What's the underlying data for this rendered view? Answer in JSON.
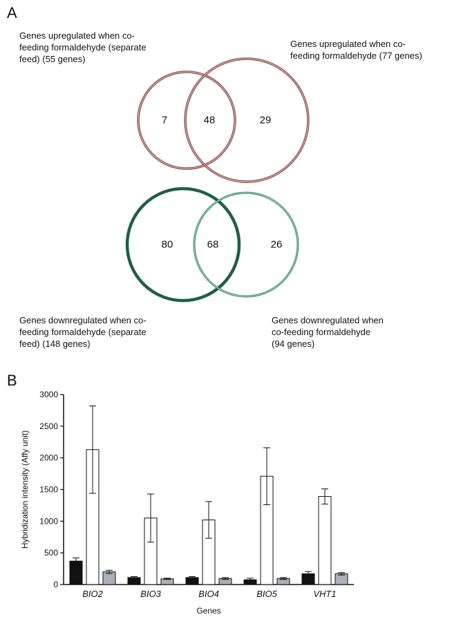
{
  "panel_a": {
    "letter": "A",
    "up": {
      "left_label": [
        "Genes upregulated when co-",
        "feeding formaldehyde (separate",
        "feed) (55 genes)"
      ],
      "right_label": [
        "Genes upregulated when co-",
        "feeding formaldehyde  (77 genes)"
      ],
      "only_left": "7",
      "overlap": "48",
      "only_right": "29",
      "color": "#8b4a48"
    },
    "down": {
      "left_label": [
        "Genes downregulated when co-",
        "feeding formaldehyde (separate",
        "feed) (148 genes)"
      ],
      "right_label": [
        "Genes downregulated when",
        "co-feeding formaldehyde",
        "(94 genes)"
      ],
      "only_left": "80",
      "overlap": "68",
      "only_right": "26",
      "color": "#1e6b55"
    }
  },
  "panel_b": {
    "letter": "B",
    "chart_data": {
      "type": "bar",
      "categories": [
        "BIO2",
        "BIO3",
        "BIO4",
        "BIO5",
        "VHT1"
      ],
      "series": [
        {
          "values": [
            370,
            110,
            110,
            75,
            170
          ],
          "errors": [
            50,
            15,
            15,
            25,
            35
          ],
          "color": "#111111"
        },
        {
          "values": [
            2130,
            1050,
            1020,
            1710,
            1390
          ],
          "errors": [
            690,
            380,
            290,
            450,
            120
          ],
          "color": "#ffffff"
        },
        {
          "values": [
            200,
            90,
            95,
            95,
            170
          ],
          "errors": [
            25,
            10,
            15,
            15,
            20
          ],
          "color": "#a9b0b8"
        }
      ],
      "ylim": [
        0,
        3000
      ],
      "yticks": [
        "0",
        "500",
        "1000",
        "1500",
        "2000",
        "2500",
        "3000"
      ],
      "ylabel": "Hybridization intensity (Affy unit)",
      "xlabel": "Genes"
    }
  }
}
